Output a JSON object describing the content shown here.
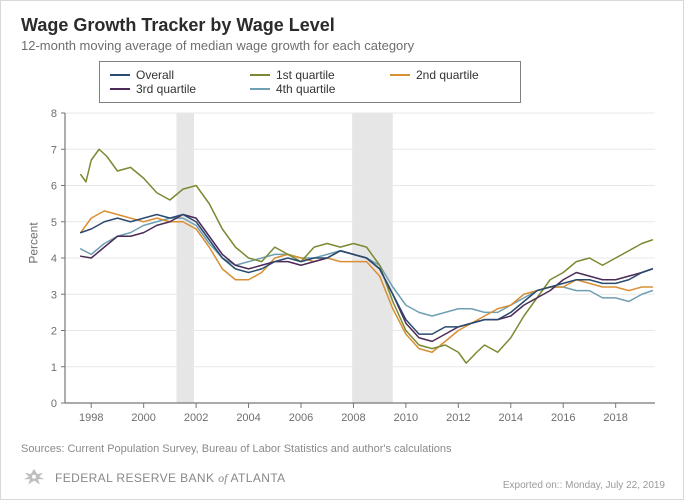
{
  "title": "Wage Growth Tracker by Wage Level",
  "subtitle": "12-month moving average of median wage growth for each category",
  "ylabel": "Percent",
  "sources_text": "Sources: Current Population Survey, Bureau of Labor Statistics and author's calculations",
  "footer": {
    "brand_line1": "FEDERAL RESERVE BANK",
    "brand_of": "of",
    "brand_line1b": "ATLANTA",
    "export_note": "Exported on:: Monday, July 22, 2019"
  },
  "chart": {
    "type": "line",
    "x_domain": [
      1997,
      2019.5
    ],
    "y_domain": [
      0,
      8
    ],
    "x_ticks": [
      1998,
      2000,
      2002,
      2004,
      2006,
      2008,
      2010,
      2012,
      2014,
      2016,
      2018
    ],
    "y_ticks": [
      0,
      1,
      2,
      3,
      4,
      5,
      6,
      7,
      8
    ],
    "background_color": "#ffffff",
    "grid_color": "#e8e8e8",
    "axis_line_color": "#777777",
    "tick_color": "#777777",
    "line_width": 1.5,
    "recession_bands": [
      {
        "start": 2001.25,
        "end": 2001.92,
        "color": "#e6e6e6"
      },
      {
        "start": 2007.95,
        "end": 2009.5,
        "color": "#e6e6e6"
      }
    ],
    "legend": [
      {
        "label": "Overall",
        "color": "#2b4a6f"
      },
      {
        "label": "1st quartile",
        "color": "#7a8a33"
      },
      {
        "label": "2nd quartile",
        "color": "#d98f33"
      },
      {
        "label": "3rd quartile",
        "color": "#4b2b56"
      },
      {
        "label": "4th quartile",
        "color": "#6f9fb3"
      }
    ],
    "series": {
      "overall": {
        "color": "#2b4a6f",
        "points": [
          [
            1997.6,
            4.7
          ],
          [
            1998,
            4.8
          ],
          [
            1998.5,
            5.0
          ],
          [
            1999,
            5.1
          ],
          [
            1999.5,
            5.0
          ],
          [
            2000,
            5.1
          ],
          [
            2000.5,
            5.2
          ],
          [
            2001,
            5.1
          ],
          [
            2001.5,
            5.2
          ],
          [
            2002,
            5.0
          ],
          [
            2002.5,
            4.5
          ],
          [
            2003,
            4.0
          ],
          [
            2003.5,
            3.7
          ],
          [
            2004,
            3.6
          ],
          [
            2004.5,
            3.7
          ],
          [
            2005,
            3.9
          ],
          [
            2005.5,
            4.0
          ],
          [
            2006,
            3.9
          ],
          [
            2006.5,
            4.0
          ],
          [
            2007,
            4.0
          ],
          [
            2007.5,
            4.2
          ],
          [
            2008,
            4.1
          ],
          [
            2008.5,
            4.0
          ],
          [
            2009,
            3.7
          ],
          [
            2009.5,
            3.0
          ],
          [
            2010,
            2.3
          ],
          [
            2010.5,
            1.9
          ],
          [
            2011,
            1.9
          ],
          [
            2011.5,
            2.1
          ],
          [
            2012,
            2.1
          ],
          [
            2012.5,
            2.2
          ],
          [
            2013,
            2.3
          ],
          [
            2013.5,
            2.3
          ],
          [
            2014,
            2.5
          ],
          [
            2014.5,
            2.8
          ],
          [
            2015,
            3.1
          ],
          [
            2015.5,
            3.2
          ],
          [
            2016,
            3.3
          ],
          [
            2016.5,
            3.4
          ],
          [
            2017,
            3.4
          ],
          [
            2017.5,
            3.3
          ],
          [
            2018,
            3.3
          ],
          [
            2018.5,
            3.4
          ],
          [
            2019,
            3.6
          ],
          [
            2019.4,
            3.7
          ]
        ]
      },
      "q1": {
        "color": "#7a8a33",
        "points": [
          [
            1997.6,
            6.3
          ],
          [
            1997.8,
            6.1
          ],
          [
            1998,
            6.7
          ],
          [
            1998.3,
            7.0
          ],
          [
            1998.6,
            6.8
          ],
          [
            1999,
            6.4
          ],
          [
            1999.5,
            6.5
          ],
          [
            2000,
            6.2
          ],
          [
            2000.5,
            5.8
          ],
          [
            2001,
            5.6
          ],
          [
            2001.5,
            5.9
          ],
          [
            2002,
            6.0
          ],
          [
            2002.5,
            5.5
          ],
          [
            2003,
            4.8
          ],
          [
            2003.5,
            4.3
          ],
          [
            2004,
            4.0
          ],
          [
            2004.5,
            3.9
          ],
          [
            2005,
            4.3
          ],
          [
            2005.5,
            4.1
          ],
          [
            2006,
            3.9
          ],
          [
            2006.5,
            4.3
          ],
          [
            2007,
            4.4
          ],
          [
            2007.5,
            4.3
          ],
          [
            2008,
            4.4
          ],
          [
            2008.5,
            4.3
          ],
          [
            2009,
            3.8
          ],
          [
            2009.5,
            2.8
          ],
          [
            2010,
            2.0
          ],
          [
            2010.5,
            1.6
          ],
          [
            2011,
            1.5
          ],
          [
            2011.5,
            1.6
          ],
          [
            2012,
            1.4
          ],
          [
            2012.3,
            1.1
          ],
          [
            2012.7,
            1.4
          ],
          [
            2013,
            1.6
          ],
          [
            2013.5,
            1.4
          ],
          [
            2014,
            1.8
          ],
          [
            2014.5,
            2.4
          ],
          [
            2015,
            2.9
          ],
          [
            2015.5,
            3.4
          ],
          [
            2016,
            3.6
          ],
          [
            2016.5,
            3.9
          ],
          [
            2017,
            4.0
          ],
          [
            2017.5,
            3.8
          ],
          [
            2018,
            4.0
          ],
          [
            2018.5,
            4.2
          ],
          [
            2019,
            4.4
          ],
          [
            2019.4,
            4.5
          ]
        ]
      },
      "q2": {
        "color": "#d98f33",
        "points": [
          [
            1997.6,
            4.7
          ],
          [
            1998,
            5.1
          ],
          [
            1998.5,
            5.3
          ],
          [
            1999,
            5.2
          ],
          [
            1999.5,
            5.1
          ],
          [
            2000,
            5.0
          ],
          [
            2000.5,
            5.1
          ],
          [
            2001,
            5.0
          ],
          [
            2001.5,
            5.0
          ],
          [
            2002,
            4.8
          ],
          [
            2002.5,
            4.3
          ],
          [
            2003,
            3.7
          ],
          [
            2003.5,
            3.4
          ],
          [
            2004,
            3.4
          ],
          [
            2004.5,
            3.6
          ],
          [
            2005,
            4.0
          ],
          [
            2005.5,
            4.1
          ],
          [
            2006,
            4.0
          ],
          [
            2006.5,
            3.9
          ],
          [
            2007,
            4.0
          ],
          [
            2007.5,
            3.9
          ],
          [
            2008,
            3.9
          ],
          [
            2008.5,
            3.9
          ],
          [
            2009,
            3.5
          ],
          [
            2009.5,
            2.6
          ],
          [
            2010,
            1.9
          ],
          [
            2010.5,
            1.5
          ],
          [
            2011,
            1.4
          ],
          [
            2011.5,
            1.7
          ],
          [
            2012,
            2.0
          ],
          [
            2012.5,
            2.2
          ],
          [
            2013,
            2.4
          ],
          [
            2013.5,
            2.6
          ],
          [
            2014,
            2.7
          ],
          [
            2014.5,
            3.0
          ],
          [
            2015,
            3.1
          ],
          [
            2015.5,
            3.2
          ],
          [
            2016,
            3.2
          ],
          [
            2016.5,
            3.4
          ],
          [
            2017,
            3.3
          ],
          [
            2017.5,
            3.2
          ],
          [
            2018,
            3.2
          ],
          [
            2018.5,
            3.1
          ],
          [
            2019,
            3.2
          ],
          [
            2019.4,
            3.2
          ]
        ]
      },
      "q3": {
        "color": "#4b2b56",
        "points": [
          [
            1997.6,
            4.05
          ],
          [
            1998,
            4.0
          ],
          [
            1998.5,
            4.3
          ],
          [
            1999,
            4.6
          ],
          [
            1999.5,
            4.6
          ],
          [
            2000,
            4.7
          ],
          [
            2000.5,
            4.9
          ],
          [
            2001,
            5.0
          ],
          [
            2001.5,
            5.2
          ],
          [
            2002,
            5.1
          ],
          [
            2002.5,
            4.6
          ],
          [
            2003,
            4.1
          ],
          [
            2003.5,
            3.8
          ],
          [
            2004,
            3.7
          ],
          [
            2004.5,
            3.8
          ],
          [
            2005,
            3.9
          ],
          [
            2005.5,
            3.9
          ],
          [
            2006,
            3.8
          ],
          [
            2006.5,
            3.9
          ],
          [
            2007,
            4.0
          ],
          [
            2007.5,
            4.2
          ],
          [
            2008,
            4.1
          ],
          [
            2008.5,
            4.0
          ],
          [
            2009,
            3.7
          ],
          [
            2009.5,
            3.0
          ],
          [
            2010,
            2.2
          ],
          [
            2010.5,
            1.8
          ],
          [
            2011,
            1.7
          ],
          [
            2011.5,
            1.9
          ],
          [
            2012,
            2.1
          ],
          [
            2012.5,
            2.2
          ],
          [
            2013,
            2.3
          ],
          [
            2013.5,
            2.3
          ],
          [
            2014,
            2.4
          ],
          [
            2014.5,
            2.7
          ],
          [
            2015,
            2.9
          ],
          [
            2015.5,
            3.1
          ],
          [
            2016,
            3.4
          ],
          [
            2016.5,
            3.6
          ],
          [
            2017,
            3.5
          ],
          [
            2017.5,
            3.4
          ],
          [
            2018,
            3.4
          ],
          [
            2018.5,
            3.5
          ],
          [
            2019,
            3.6
          ],
          [
            2019.4,
            3.7
          ]
        ]
      },
      "q4": {
        "color": "#6f9fb3",
        "points": [
          [
            1997.6,
            4.25
          ],
          [
            1998,
            4.1
          ],
          [
            1998.5,
            4.4
          ],
          [
            1999,
            4.6
          ],
          [
            1999.5,
            4.7
          ],
          [
            2000,
            4.9
          ],
          [
            2000.5,
            5.0
          ],
          [
            2001,
            5.1
          ],
          [
            2001.5,
            5.1
          ],
          [
            2002,
            4.9
          ],
          [
            2002.5,
            4.4
          ],
          [
            2003,
            4.0
          ],
          [
            2003.5,
            3.8
          ],
          [
            2004,
            3.9
          ],
          [
            2004.5,
            4.0
          ],
          [
            2005,
            4.1
          ],
          [
            2005.5,
            4.1
          ],
          [
            2006,
            4.0
          ],
          [
            2006.5,
            4.0
          ],
          [
            2007,
            4.1
          ],
          [
            2007.5,
            4.2
          ],
          [
            2008,
            4.1
          ],
          [
            2008.5,
            4.0
          ],
          [
            2009,
            3.8
          ],
          [
            2009.5,
            3.2
          ],
          [
            2010,
            2.7
          ],
          [
            2010.5,
            2.5
          ],
          [
            2011,
            2.4
          ],
          [
            2011.5,
            2.5
          ],
          [
            2012,
            2.6
          ],
          [
            2012.5,
            2.6
          ],
          [
            2013,
            2.5
          ],
          [
            2013.5,
            2.5
          ],
          [
            2014,
            2.7
          ],
          [
            2014.5,
            2.9
          ],
          [
            2015,
            3.1
          ],
          [
            2015.5,
            3.2
          ],
          [
            2016,
            3.2
          ],
          [
            2016.5,
            3.1
          ],
          [
            2017,
            3.1
          ],
          [
            2017.5,
            2.9
          ],
          [
            2018,
            2.9
          ],
          [
            2018.5,
            2.8
          ],
          [
            2019,
            3.0
          ],
          [
            2019.4,
            3.1
          ]
        ]
      }
    }
  }
}
